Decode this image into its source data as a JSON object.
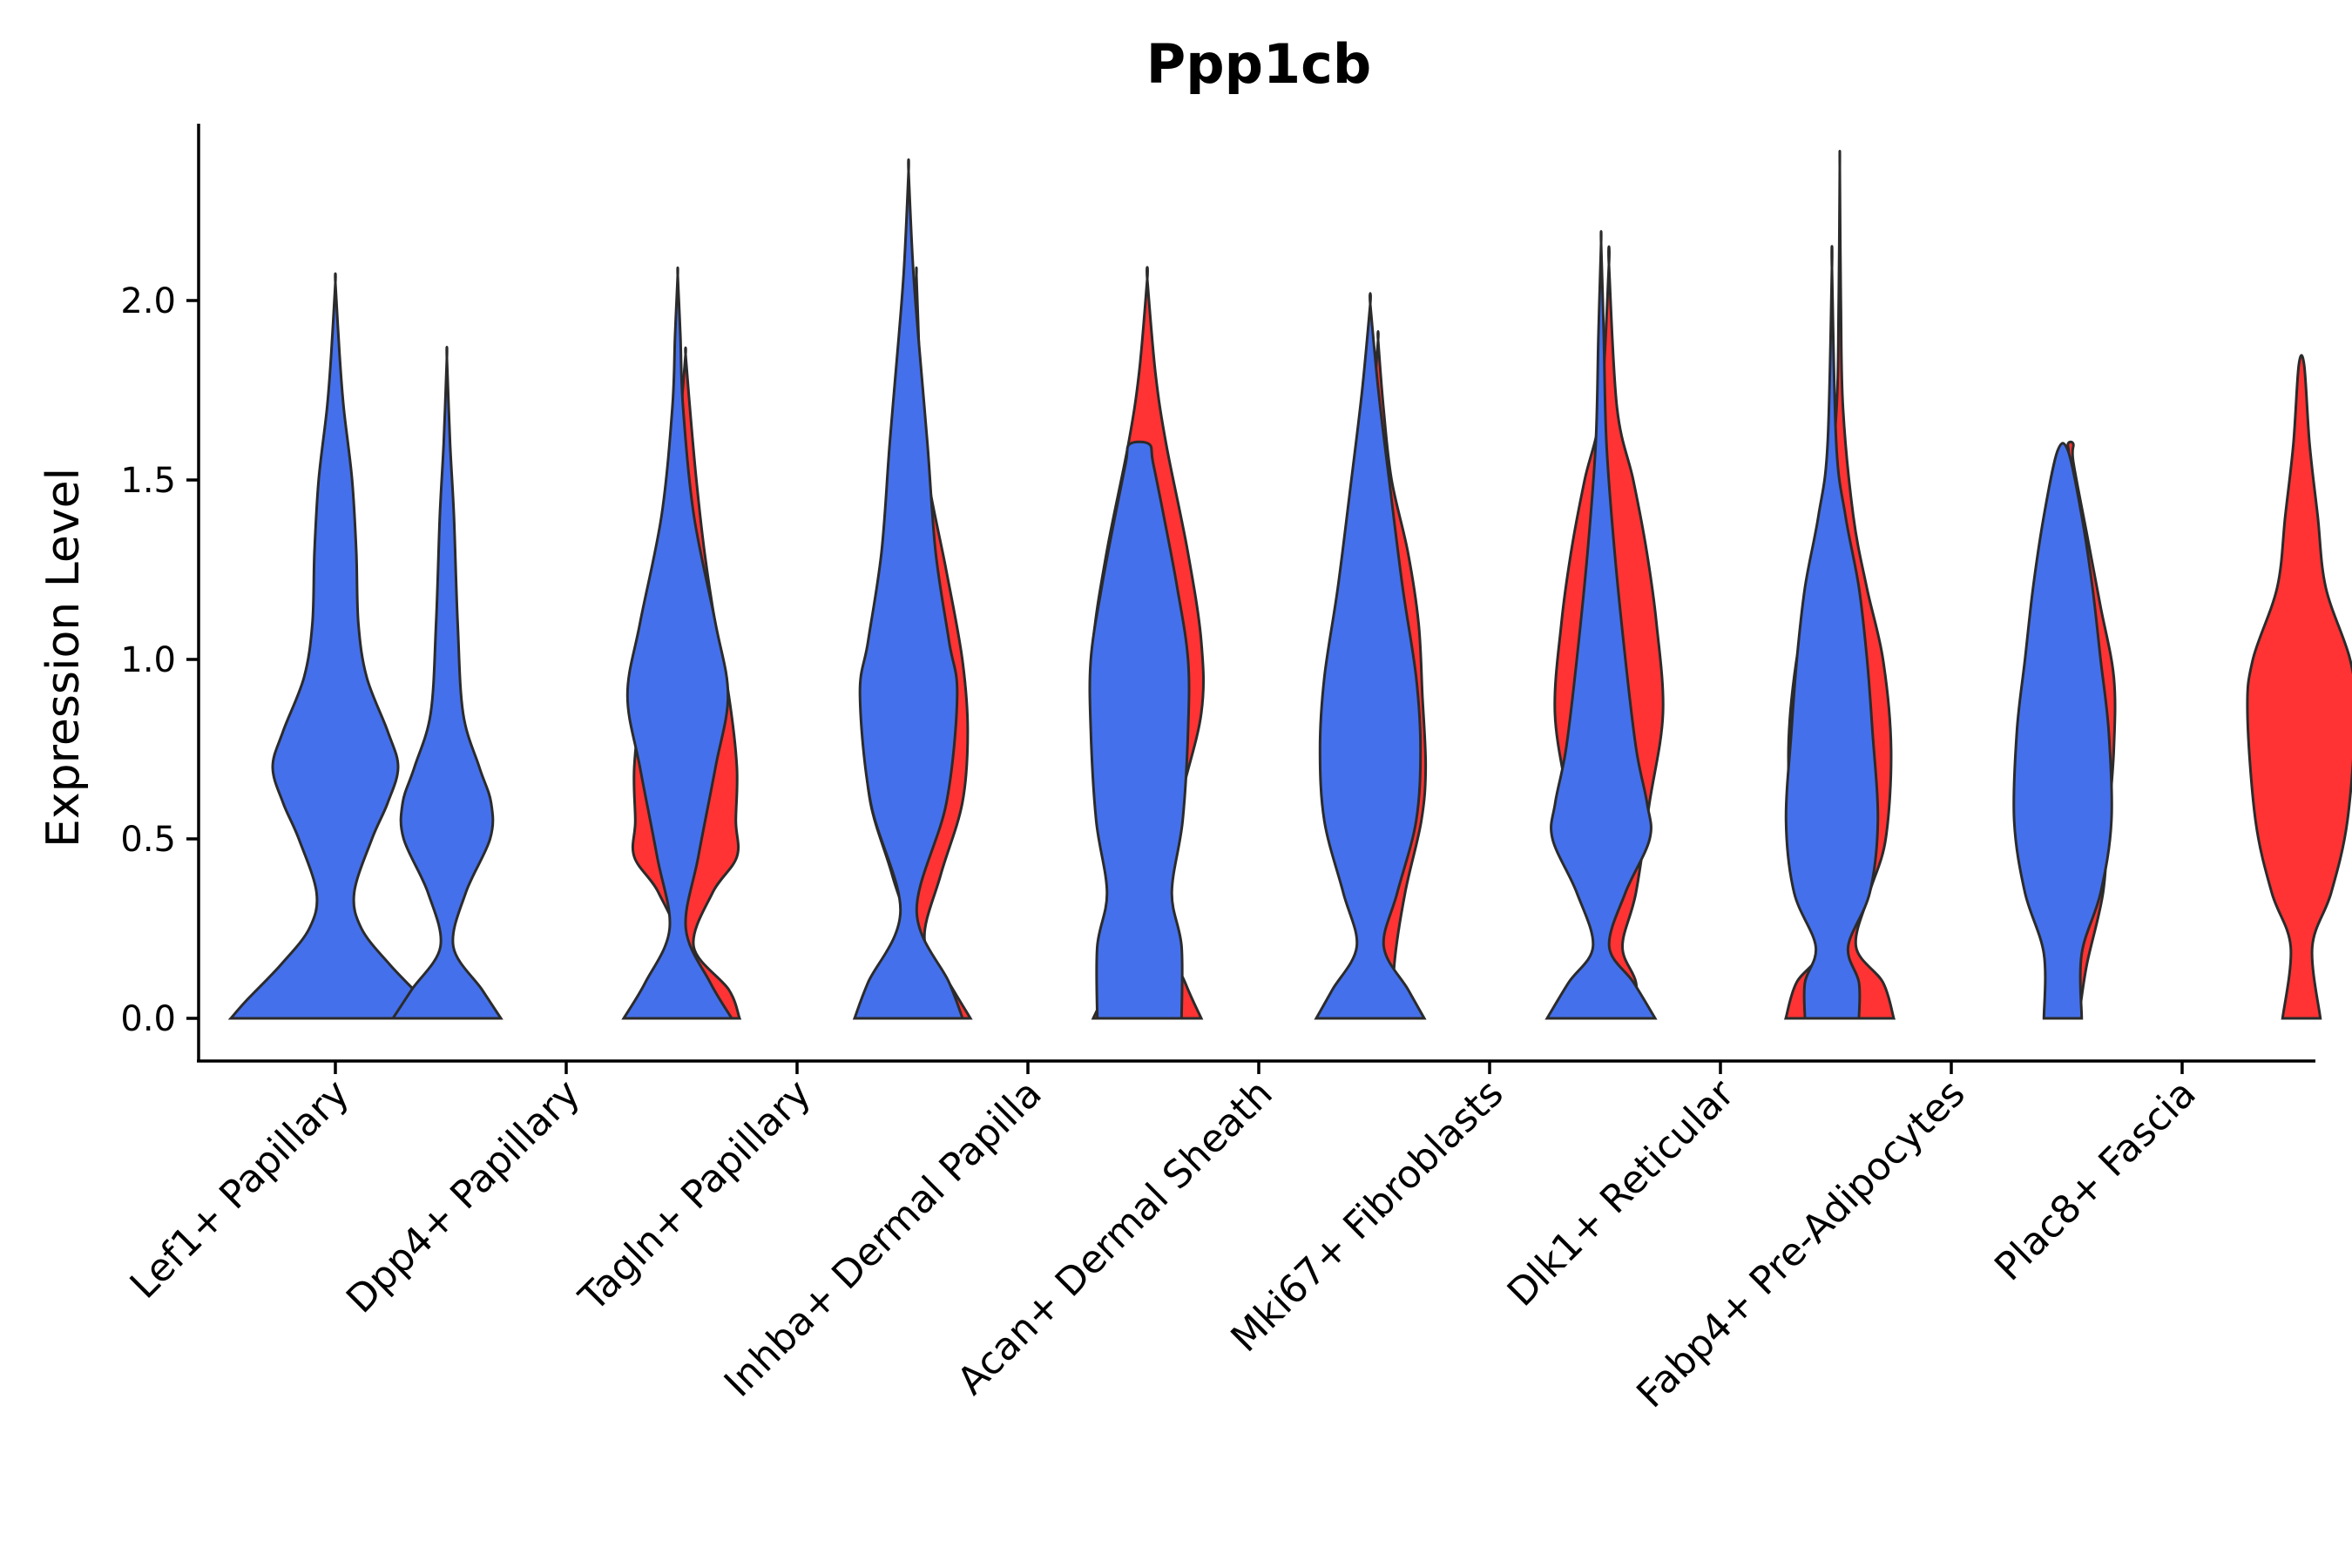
{
  "chart_data": {
    "type": "violin",
    "title": "Ppp1cb",
    "xlabel": "",
    "ylabel": "Expression Level",
    "ylim": [
      -0.12,
      2.5
    ],
    "yticks": [
      0.0,
      0.5,
      1.0,
      1.5,
      2.0
    ],
    "ytick_labels": [
      "0.0",
      "0.5",
      "1.0",
      "1.5",
      "2.0"
    ],
    "grid": false,
    "legend": "none",
    "colors": {
      "blue": "#4570EB",
      "red": "#FF3333",
      "outline": "#2b2b2b"
    },
    "categories": [
      "Lef1+ Papillary",
      "Dpp4+ Papillary",
      "Tagln+ Papillary",
      "Inhba+ Dermal Papilla",
      "Acan+ Dermal Sheath",
      "Mki67+ Fibroblasts",
      "Dlk1+ Reticular",
      "Fabp4+ Pre-Adipocytes",
      "Plac8+ Fascia"
    ],
    "violins": [
      {
        "category": 0,
        "group": "blue",
        "offset": 0,
        "max": 2.05,
        "profile": [
          [
            0,
            1.0
          ],
          [
            0.05,
            0.85
          ],
          [
            0.15,
            0.52
          ],
          [
            0.25,
            0.25
          ],
          [
            0.35,
            0.18
          ],
          [
            0.5,
            0.35
          ],
          [
            0.6,
            0.5
          ],
          [
            0.7,
            0.6
          ],
          [
            0.8,
            0.5
          ],
          [
            0.95,
            0.3
          ],
          [
            1.1,
            0.22
          ],
          [
            1.3,
            0.2
          ],
          [
            1.5,
            0.16
          ],
          [
            1.7,
            0.08
          ],
          [
            1.85,
            0.04
          ],
          [
            2.05,
            0
          ]
        ]
      },
      {
        "category": 1,
        "group": "blue",
        "offset": -0.26,
        "max": 1.84,
        "profile": [
          [
            0,
            1.0
          ],
          [
            0.08,
            0.65
          ],
          [
            0.2,
            0.12
          ],
          [
            0.35,
            0.35
          ],
          [
            0.5,
            0.8
          ],
          [
            0.6,
            0.82
          ],
          [
            0.7,
            0.6
          ],
          [
            0.85,
            0.3
          ],
          [
            1.1,
            0.2
          ],
          [
            1.4,
            0.13
          ],
          [
            1.6,
            0.06
          ],
          [
            1.84,
            0
          ]
        ]
      },
      {
        "category": 1,
        "group": "red",
        "offset": 0.26,
        "max": 1.85,
        "profile": [
          [
            0,
            1.0
          ],
          [
            0.08,
            0.8
          ],
          [
            0.2,
            0.15
          ],
          [
            0.35,
            0.5
          ],
          [
            0.45,
            0.95
          ],
          [
            0.55,
            0.93
          ],
          [
            0.7,
            0.95
          ],
          [
            0.9,
            0.8
          ],
          [
            1.1,
            0.55
          ],
          [
            1.3,
            0.35
          ],
          [
            1.5,
            0.2
          ],
          [
            1.7,
            0.08
          ],
          [
            1.85,
            0
          ]
        ]
      },
      {
        "category": 2,
        "group": "blue",
        "offset": -0.26,
        "max": 2.07,
        "profile": [
          [
            0,
            1.0
          ],
          [
            0.1,
            0.6
          ],
          [
            0.25,
            0.15
          ],
          [
            0.45,
            0.38
          ],
          [
            0.7,
            0.7
          ],
          [
            0.9,
            0.93
          ],
          [
            1.1,
            0.7
          ],
          [
            1.4,
            0.3
          ],
          [
            1.7,
            0.1
          ],
          [
            1.9,
            0.05
          ],
          [
            2.07,
            0
          ]
        ]
      },
      {
        "category": 2,
        "group": "red",
        "offset": 0.26,
        "max": 2.07,
        "profile": [
          [
            0,
            1.0
          ],
          [
            0.1,
            0.6
          ],
          [
            0.22,
            0.15
          ],
          [
            0.4,
            0.45
          ],
          [
            0.6,
            0.85
          ],
          [
            0.8,
            0.95
          ],
          [
            1.0,
            0.85
          ],
          [
            1.25,
            0.55
          ],
          [
            1.5,
            0.22
          ],
          [
            1.7,
            0.08
          ],
          [
            1.9,
            0.04
          ],
          [
            2.07,
            0
          ]
        ]
      },
      {
        "category": 3,
        "group": "blue",
        "offset": -0.26,
        "max": 2.36,
        "profile": [
          [
            0,
            1.0
          ],
          [
            0.1,
            0.75
          ],
          [
            0.3,
            0.15
          ],
          [
            0.6,
            0.7
          ],
          [
            0.9,
            0.9
          ],
          [
            1.05,
            0.75
          ],
          [
            1.3,
            0.5
          ],
          [
            1.6,
            0.35
          ],
          [
            1.9,
            0.18
          ],
          [
            2.1,
            0.08
          ],
          [
            2.36,
            0
          ]
        ]
      },
      {
        "category": 3,
        "group": "red",
        "offset": 0.26,
        "max": 2.06,
        "profile": [
          [
            0,
            1.0
          ],
          [
            0.1,
            0.7
          ],
          [
            0.3,
            0.2
          ],
          [
            0.6,
            0.6
          ],
          [
            0.85,
            1.0
          ],
          [
            1.05,
            1.0
          ],
          [
            1.3,
            0.75
          ],
          [
            1.6,
            0.35
          ],
          [
            1.8,
            0.15
          ],
          [
            2.06,
            0
          ]
        ]
      },
      {
        "category": 4,
        "group": "blue",
        "offset": -0.26,
        "max": 1.6,
        "profile": [
          [
            0,
            0.78
          ],
          [
            0.2,
            0.78
          ],
          [
            0.35,
            0.6
          ],
          [
            0.55,
            0.8
          ],
          [
            0.8,
            0.9
          ],
          [
            1.0,
            0.9
          ],
          [
            1.2,
            0.7
          ],
          [
            1.4,
            0.45
          ],
          [
            1.55,
            0.25
          ],
          [
            1.6,
            0.18
          ]
        ]
      },
      {
        "category": 4,
        "group": "red",
        "offset": 0.26,
        "max": 1.89,
        "profile": [
          [
            0,
            0.3
          ],
          [
            0.15,
            0.3
          ],
          [
            0.35,
            0.5
          ],
          [
            0.55,
            0.8
          ],
          [
            0.7,
            0.88
          ],
          [
            0.9,
            0.82
          ],
          [
            1.1,
            0.75
          ],
          [
            1.3,
            0.55
          ],
          [
            1.5,
            0.25
          ],
          [
            1.7,
            0.1
          ],
          [
            1.89,
            0
          ]
        ]
      },
      {
        "category": 5,
        "group": "blue",
        "offset": -0.26,
        "max": 1.99,
        "profile": [
          [
            0,
            1.0
          ],
          [
            0.08,
            0.7
          ],
          [
            0.2,
            0.25
          ],
          [
            0.35,
            0.5
          ],
          [
            0.55,
            0.85
          ],
          [
            0.75,
            0.93
          ],
          [
            0.95,
            0.85
          ],
          [
            1.2,
            0.6
          ],
          [
            1.5,
            0.35
          ],
          [
            1.75,
            0.15
          ],
          [
            1.99,
            0
          ]
        ]
      },
      {
        "category": 5,
        "group": "red",
        "offset": 0.26,
        "max": 2.1,
        "profile": [
          [
            0,
            0.5
          ],
          [
            0.1,
            0.5
          ],
          [
            0.2,
            0.25
          ],
          [
            0.35,
            0.5
          ],
          [
            0.6,
            0.75
          ],
          [
            0.85,
            1.0
          ],
          [
            1.1,
            0.88
          ],
          [
            1.3,
            0.7
          ],
          [
            1.5,
            0.45
          ],
          [
            1.7,
            0.15
          ],
          [
            2.1,
            0
          ]
        ]
      },
      {
        "category": 6,
        "group": "blue",
        "offset": -0.26,
        "max": 2.16,
        "profile": [
          [
            0,
            1.0
          ],
          [
            0.1,
            0.6
          ],
          [
            0.2,
            0.15
          ],
          [
            0.35,
            0.45
          ],
          [
            0.5,
            0.9
          ],
          [
            0.6,
            0.85
          ],
          [
            0.75,
            0.65
          ],
          [
            1.0,
            0.45
          ],
          [
            1.3,
            0.25
          ],
          [
            1.6,
            0.1
          ],
          [
            1.9,
            0.05
          ],
          [
            2.16,
            0
          ]
        ]
      },
      {
        "category": 6,
        "group": "red",
        "offset": 0.26,
        "max": 2.37,
        "profile": [
          [
            0,
            1.0
          ],
          [
            0.1,
            0.8
          ],
          [
            0.2,
            0.3
          ],
          [
            0.35,
            0.55
          ],
          [
            0.5,
            0.85
          ],
          [
            0.75,
            0.95
          ],
          [
            1.0,
            0.8
          ],
          [
            1.2,
            0.5
          ],
          [
            1.4,
            0.25
          ],
          [
            1.7,
            0.06
          ],
          [
            2.0,
            0.02
          ],
          [
            2.37,
            0
          ]
        ]
      },
      {
        "category": 7,
        "group": "blue",
        "offset": -0.26,
        "max": 2.09,
        "profile": [
          [
            0,
            0.5
          ],
          [
            0.1,
            0.5
          ],
          [
            0.2,
            0.3
          ],
          [
            0.35,
            0.7
          ],
          [
            0.55,
            0.85
          ],
          [
            0.8,
            0.75
          ],
          [
            1.0,
            0.65
          ],
          [
            1.2,
            0.5
          ],
          [
            1.4,
            0.25
          ],
          [
            1.6,
            0.08
          ],
          [
            2.09,
            0
          ]
        ]
      },
      {
        "category": 7,
        "group": "red",
        "offset": 0.26,
        "max": 1.6,
        "profile": [
          [
            0,
            0.15
          ],
          [
            0.15,
            0.3
          ],
          [
            0.35,
            0.6
          ],
          [
            0.55,
            0.7
          ],
          [
            0.75,
            0.8
          ],
          [
            0.95,
            0.8
          ],
          [
            1.15,
            0.55
          ],
          [
            1.35,
            0.3
          ],
          [
            1.55,
            0.05
          ],
          [
            1.6,
            0.05
          ]
        ]
      },
      {
        "category": 8,
        "group": "blue",
        "offset": -0.26,
        "max": 1.58,
        "profile": [
          [
            0,
            0.35
          ],
          [
            0.18,
            0.35
          ],
          [
            0.35,
            0.7
          ],
          [
            0.55,
            0.9
          ],
          [
            0.8,
            0.85
          ],
          [
            1.0,
            0.7
          ],
          [
            1.2,
            0.55
          ],
          [
            1.4,
            0.35
          ],
          [
            1.58,
            0.1
          ]
        ]
      },
      {
        "category": 8,
        "group": "red",
        "offset": 0.26,
        "max": 1.82,
        "profile": [
          [
            0,
            0.35
          ],
          [
            0.2,
            0.2
          ],
          [
            0.35,
            0.55
          ],
          [
            0.55,
            0.85
          ],
          [
            0.85,
            1.0
          ],
          [
            1.0,
            0.9
          ],
          [
            1.2,
            0.45
          ],
          [
            1.4,
            0.3
          ],
          [
            1.6,
            0.15
          ],
          [
            1.82,
            0.05
          ]
        ]
      }
    ]
  }
}
